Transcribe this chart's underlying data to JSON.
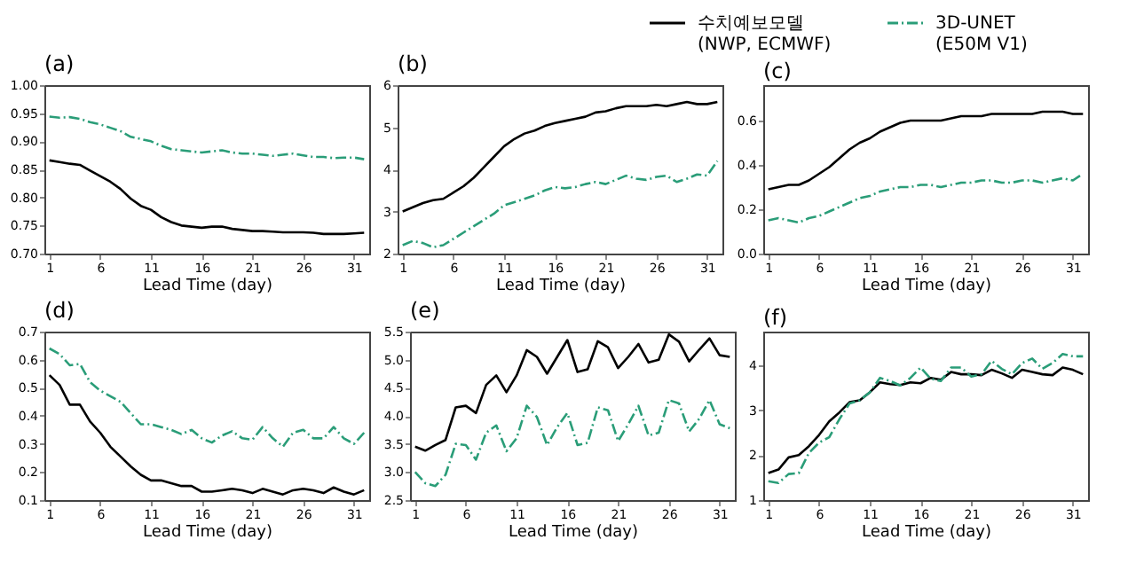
{
  "chart_data": [
    {
      "type": "line",
      "title": "(a)",
      "xlabel": "Lead Time (day)",
      "x": [
        1,
        2,
        3,
        4,
        5,
        6,
        7,
        8,
        9,
        10,
        11,
        12,
        13,
        14,
        15,
        16,
        17,
        18,
        19,
        20,
        21,
        22,
        23,
        24,
        25,
        26,
        27,
        28,
        29,
        30,
        31,
        32
      ],
      "xlim": [
        0.5,
        32.5
      ],
      "xticks": [
        1,
        6,
        11,
        16,
        21,
        26,
        31
      ],
      "ylim": [
        0.7,
        1.0
      ],
      "yticks": [
        {
          "value": 0.7,
          "label": "0.70"
        },
        {
          "value": 0.75,
          "label": "0.75"
        },
        {
          "value": 0.8,
          "label": "0.80"
        },
        {
          "value": 0.85,
          "label": "0.85"
        },
        {
          "value": 0.9,
          "label": "0.90"
        },
        {
          "value": 0.95,
          "label": "0.95"
        },
        {
          "value": 1.0,
          "label": "1.00"
        }
      ],
      "grid": false,
      "legend": "top right",
      "series": [
        {
          "name": "수치예보모델\n(NWP, ECMWF)",
          "color": "#000000",
          "line_style": "solid",
          "values": [
            0.866,
            0.863,
            0.86,
            0.858,
            0.848,
            0.838,
            0.828,
            0.815,
            0.798,
            0.785,
            0.778,
            0.765,
            0.756,
            0.75,
            0.748,
            0.746,
            0.748,
            0.748,
            0.744,
            0.742,
            0.74,
            0.74,
            0.739,
            0.738,
            0.738,
            0.738,
            0.737,
            0.735,
            0.735,
            0.735,
            0.736,
            0.737
          ]
        },
        {
          "name": "3D-UNET\n(E50M V1)",
          "color": "#2a9d78",
          "line_style": "dashed",
          "values": [
            0.944,
            0.942,
            0.943,
            0.94,
            0.934,
            0.93,
            0.924,
            0.918,
            0.908,
            0.904,
            0.9,
            0.892,
            0.886,
            0.884,
            0.882,
            0.88,
            0.882,
            0.884,
            0.88,
            0.878,
            0.878,
            0.876,
            0.874,
            0.876,
            0.878,
            0.875,
            0.872,
            0.872,
            0.87,
            0.871,
            0.871,
            0.868
          ]
        }
      ]
    },
    {
      "type": "line",
      "title": "(b)",
      "xlabel": "Lead Time (day)",
      "x": [
        1,
        2,
        3,
        4,
        5,
        6,
        7,
        8,
        9,
        10,
        11,
        12,
        13,
        14,
        15,
        16,
        17,
        18,
        19,
        20,
        21,
        22,
        23,
        24,
        25,
        26,
        27,
        28,
        29,
        30,
        31,
        32
      ],
      "xlim": [
        0.5,
        32.5
      ],
      "xticks": [
        1,
        6,
        11,
        16,
        21,
        26,
        31
      ],
      "ylim": [
        2,
        6
      ],
      "yticks": [
        2,
        3,
        4,
        5,
        6
      ],
      "grid": false,
      "series": [
        {
          "name": "수치예보모델\n(NWP, ECMWF)",
          "color": "#000000",
          "line_style": "solid",
          "values": [
            3.0,
            3.1,
            3.2,
            3.27,
            3.3,
            3.45,
            3.6,
            3.8,
            4.05,
            4.3,
            4.55,
            4.72,
            4.85,
            4.92,
            5.03,
            5.1,
            5.15,
            5.2,
            5.25,
            5.35,
            5.38,
            5.45,
            5.5,
            5.5,
            5.5,
            5.53,
            5.5,
            5.55,
            5.6,
            5.55,
            5.55,
            5.6
          ]
        },
        {
          "name": "3D-UNET\n(E50M V1)",
          "color": "#2a9d78",
          "line_style": "dashed",
          "values": [
            2.2,
            2.3,
            2.25,
            2.15,
            2.2,
            2.35,
            2.5,
            2.65,
            2.8,
            2.95,
            3.15,
            3.22,
            3.3,
            3.38,
            3.5,
            3.58,
            3.55,
            3.58,
            3.65,
            3.7,
            3.65,
            3.75,
            3.85,
            3.78,
            3.75,
            3.82,
            3.85,
            3.7,
            3.78,
            3.88,
            3.85,
            4.2
          ]
        }
      ]
    },
    {
      "type": "line",
      "title": "(c)",
      "xlabel": "Lead Time (day)",
      "x": [
        1,
        2,
        3,
        4,
        5,
        6,
        7,
        8,
        9,
        10,
        11,
        12,
        13,
        14,
        15,
        16,
        17,
        18,
        19,
        20,
        21,
        22,
        23,
        24,
        25,
        26,
        27,
        28,
        29,
        30,
        31,
        32
      ],
      "xlim": [
        0.5,
        32.5
      ],
      "xticks": [
        1,
        6,
        11,
        16,
        21,
        26,
        31
      ],
      "ylim": [
        0,
        0.76
      ],
      "yticks": [
        {
          "value": 0,
          "label": "0.0"
        },
        0.2,
        0.4,
        0.6
      ],
      "grid": false,
      "series": [
        {
          "name": "수치예보모델\n(NWP, ECMWF)",
          "color": "#000000",
          "line_style": "solid",
          "values": [
            0.29,
            0.3,
            0.31,
            0.31,
            0.33,
            0.36,
            0.39,
            0.43,
            0.47,
            0.5,
            0.52,
            0.55,
            0.57,
            0.59,
            0.6,
            0.6,
            0.6,
            0.6,
            0.61,
            0.62,
            0.62,
            0.62,
            0.63,
            0.63,
            0.63,
            0.63,
            0.63,
            0.64,
            0.64,
            0.64,
            0.63,
            0.63
          ]
        },
        {
          "name": "3D-UNET\n(E50M V1)",
          "color": "#2a9d78",
          "line_style": "dashed",
          "values": [
            0.15,
            0.16,
            0.15,
            0.14,
            0.16,
            0.17,
            0.19,
            0.21,
            0.23,
            0.25,
            0.26,
            0.28,
            0.29,
            0.3,
            0.3,
            0.31,
            0.31,
            0.3,
            0.31,
            0.32,
            0.32,
            0.33,
            0.33,
            0.32,
            0.32,
            0.33,
            0.33,
            0.32,
            0.33,
            0.34,
            0.33,
            0.36
          ]
        }
      ]
    },
    {
      "type": "line",
      "title": "(d)",
      "xlabel": "Lead Time (day)",
      "x": [
        1,
        2,
        3,
        4,
        5,
        6,
        7,
        8,
        9,
        10,
        11,
        12,
        13,
        14,
        15,
        16,
        17,
        18,
        19,
        20,
        21,
        22,
        23,
        24,
        25,
        26,
        27,
        28,
        29,
        30,
        31,
        32
      ],
      "xlim": [
        0.5,
        32.5
      ],
      "xticks": [
        1,
        6,
        11,
        16,
        21,
        26,
        31
      ],
      "ylim": [
        0.1,
        0.7
      ],
      "yticks": [
        0.1,
        0.2,
        0.3,
        0.4,
        0.5,
        0.6,
        0.7
      ],
      "grid": false,
      "series": [
        {
          "name": "수치예보모델\n(NWP, ECMWF)",
          "color": "#000000",
          "line_style": "solid",
          "values": [
            0.545,
            0.51,
            0.44,
            0.44,
            0.38,
            0.34,
            0.29,
            0.255,
            0.22,
            0.19,
            0.17,
            0.17,
            0.16,
            0.15,
            0.15,
            0.13,
            0.13,
            0.135,
            0.14,
            0.135,
            0.125,
            0.14,
            0.13,
            0.12,
            0.135,
            0.14,
            0.135,
            0.125,
            0.145,
            0.13,
            0.12,
            0.135
          ]
        },
        {
          "name": "3D-UNET\n(E50M V1)",
          "color": "#2a9d78",
          "line_style": "dashed",
          "values": [
            0.64,
            0.62,
            0.58,
            0.585,
            0.52,
            0.49,
            0.47,
            0.45,
            0.41,
            0.37,
            0.37,
            0.36,
            0.35,
            0.335,
            0.35,
            0.32,
            0.305,
            0.33,
            0.345,
            0.32,
            0.315,
            0.36,
            0.32,
            0.29,
            0.34,
            0.35,
            0.32,
            0.32,
            0.36,
            0.32,
            0.3,
            0.34
          ]
        }
      ]
    },
    {
      "type": "line",
      "title": "(e)",
      "xlabel": "Lead Time (day)",
      "x": [
        1,
        2,
        3,
        4,
        5,
        6,
        7,
        8,
        9,
        10,
        11,
        12,
        13,
        14,
        15,
        16,
        17,
        18,
        19,
        20,
        21,
        22,
        23,
        24,
        25,
        26,
        27,
        28,
        29,
        30,
        31,
        32
      ],
      "xlim": [
        0.5,
        32.5
      ],
      "xticks": [
        1,
        6,
        11,
        16,
        21,
        26,
        31
      ],
      "ylim": [
        2.5,
        5.5
      ],
      "yticks": [
        2.5,
        {
          "value": 3,
          "label": "3.0"
        },
        3.5,
        {
          "value": 4,
          "label": "4.0"
        },
        4.5,
        {
          "value": 5,
          "label": "5.0"
        },
        5.5
      ],
      "grid": false,
      "series": [
        {
          "name": "수치예보모델\n(NWP, ECMWF)",
          "color": "#000000",
          "line_style": "solid",
          "values": [
            3.45,
            3.38,
            3.48,
            3.57,
            4.15,
            4.18,
            4.05,
            4.55,
            4.72,
            4.42,
            4.72,
            5.17,
            5.05,
            4.75,
            5.05,
            5.35,
            4.78,
            4.83,
            5.33,
            5.22,
            4.85,
            5.05,
            5.28,
            4.95,
            5.0,
            5.45,
            5.32,
            4.97,
            5.18,
            5.38,
            5.08,
            5.05
          ]
        },
        {
          "name": "3D-UNET\n(E50M V1)",
          "color": "#2a9d78",
          "line_style": "dashed",
          "values": [
            3.0,
            2.8,
            2.75,
            2.95,
            3.5,
            3.48,
            3.22,
            3.7,
            3.83,
            3.37,
            3.6,
            4.18,
            3.98,
            3.48,
            3.8,
            4.05,
            3.48,
            3.52,
            4.15,
            4.1,
            3.55,
            3.85,
            4.18,
            3.65,
            3.7,
            4.28,
            4.22,
            3.72,
            3.95,
            4.28,
            3.85,
            3.78
          ]
        }
      ]
    },
    {
      "type": "line",
      "title": "(f)",
      "xlabel": "Lead Time (day)",
      "x": [
        1,
        2,
        3,
        4,
        5,
        6,
        7,
        8,
        9,
        10,
        11,
        12,
        13,
        14,
        15,
        16,
        17,
        18,
        19,
        20,
        21,
        22,
        23,
        24,
        25,
        26,
        27,
        28,
        29,
        30,
        31,
        32
      ],
      "xlim": [
        0.5,
        32.5
      ],
      "xticks": [
        1,
        6,
        11,
        16,
        21,
        26,
        31
      ],
      "ylim": [
        1,
        4.75
      ],
      "yticks": [
        1,
        2,
        3,
        4
      ],
      "grid": false,
      "series": [
        {
          "name": "수치예보모델\n(NWP, ECMWF)",
          "color": "#000000",
          "line_style": "solid",
          "values": [
            1.6,
            1.68,
            1.95,
            2.0,
            2.2,
            2.45,
            2.75,
            2.95,
            3.18,
            3.22,
            3.4,
            3.62,
            3.58,
            3.56,
            3.62,
            3.6,
            3.72,
            3.68,
            3.85,
            3.8,
            3.8,
            3.78,
            3.9,
            3.82,
            3.72,
            3.9,
            3.85,
            3.8,
            3.78,
            3.95,
            3.9,
            3.8
          ]
        },
        {
          "name": "3D-UNET\n(E50M V1)",
          "color": "#2a9d78",
          "line_style": "dashed",
          "values": [
            1.42,
            1.38,
            1.58,
            1.6,
            2.05,
            2.28,
            2.4,
            2.8,
            3.15,
            3.22,
            3.4,
            3.72,
            3.65,
            3.55,
            3.72,
            3.95,
            3.7,
            3.65,
            3.95,
            3.95,
            3.75,
            3.8,
            4.1,
            3.92,
            3.8,
            4.05,
            4.15,
            3.92,
            4.05,
            4.25,
            4.2,
            4.2
          ]
        }
      ]
    }
  ]
}
